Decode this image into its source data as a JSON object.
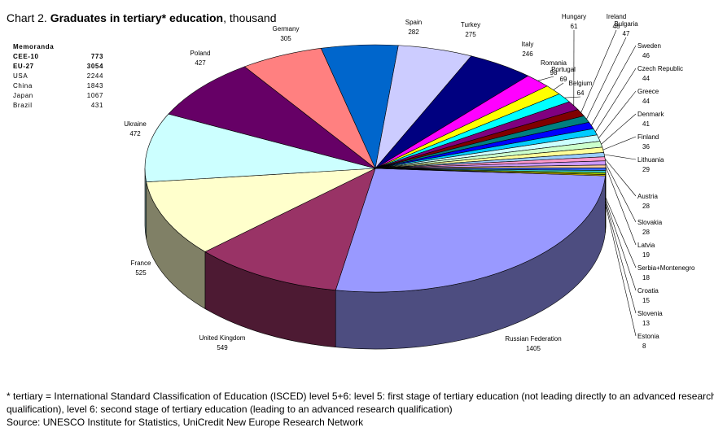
{
  "title": {
    "prefix": "Chart 2.",
    "bold": "Graduates in tertiary* education",
    "suffix": ", thousand"
  },
  "memoranda": {
    "heading": "Memoranda",
    "rows": [
      [
        "CEE-10",
        "773"
      ],
      [
        "EU-27",
        "3054"
      ],
      [
        "USA",
        "2244"
      ],
      [
        "China",
        "1843"
      ],
      [
        "Japan",
        "1067"
      ],
      [
        "Brazil",
        "431"
      ]
    ]
  },
  "chart_data": {
    "type": "pie3d",
    "categories": [
      "Russian Federation",
      "United Kingdom",
      "France",
      "Ukraine",
      "Poland",
      "Germany",
      "Spain",
      "Turkey",
      "Italy",
      "Romania",
      "Portugal",
      "Belgium",
      "Hungary",
      "Ireland",
      "Bulgaria",
      "Sweden",
      "Czech Republic",
      "Greece",
      "Denmark",
      "Finland",
      "Lithuania",
      "Austria",
      "Slovakia",
      "Latvia",
      "Serbia+Montenegro",
      "Croatia",
      "Slovenia",
      "Estonia"
    ],
    "values": [
      1405,
      549,
      525,
      472,
      427,
      305,
      282,
      275,
      246,
      98,
      69,
      64,
      61,
      48,
      47,
      46,
      44,
      44,
      41,
      36,
      29,
      28,
      28,
      19,
      18,
      15,
      13,
      8
    ],
    "colors": [
      "#9999ff",
      "#993366",
      "#ffffcc",
      "#ccffff",
      "#660066",
      "#ff8080",
      "#0066cc",
      "#ccccff",
      "#000080",
      "#ff00ff",
      "#ffff00",
      "#00ffff",
      "#800080",
      "#800000",
      "#008080",
      "#0000ff",
      "#00ccff",
      "#ccffff",
      "#ccffcc",
      "#ffff99",
      "#99ccff",
      "#ff99cc",
      "#cc99ff",
      "#ffcc99",
      "#3366ff",
      "#33cccc",
      "#99cc00",
      "#ffcc00"
    ]
  },
  "footnotes": [
    "* tertiary = International Standard Classification of Education (ISCED) level 5+6: level 5: first stage of tertiary education (not leading directly to an advanced research",
    "qualification), level 6: second stage of tertiary education (leading to an advanced research qualification)",
    "Source: UNESCO Institute for Statistics, UniCredit New Europe Research Network"
  ]
}
